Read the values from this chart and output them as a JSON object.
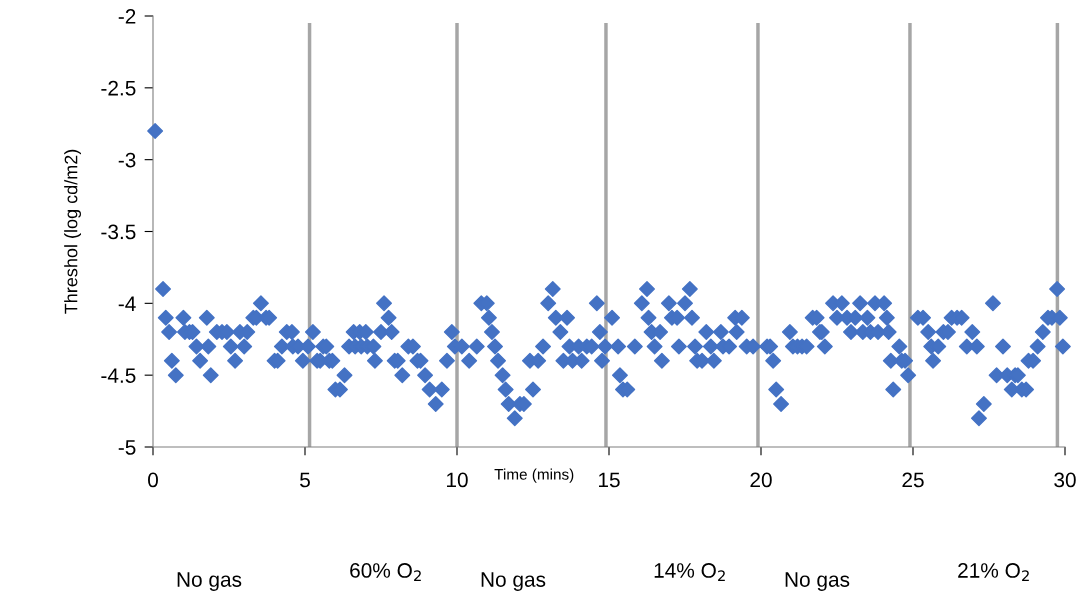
{
  "chart_data": {
    "type": "scatter",
    "xlabel": "Time (mins)",
    "ylabel": "Threshol (log cd/m2)",
    "marker": "diamond",
    "grid": false,
    "xlim": [
      0,
      30
    ],
    "ylim": [
      -5,
      -2
    ],
    "xticks": [
      0,
      5,
      10,
      15,
      20,
      25,
      30
    ],
    "yticks": [
      -5,
      -4.5,
      -4,
      -3.5,
      -3,
      -2.5,
      -2
    ],
    "series": [
      {
        "color": "#4472c4",
        "x": [
          0.07,
          0.33,
          0.42,
          0.53,
          0.62,
          0.75,
          1.0,
          1.05,
          1.2,
          1.3,
          1.43,
          1.55,
          1.77,
          1.82,
          1.9,
          2.1,
          2.27,
          2.43,
          2.56,
          2.7,
          2.86,
          3.0,
          3.1,
          3.3,
          3.4,
          3.55,
          3.72,
          3.82,
          4.0,
          4.1,
          4.24,
          4.4,
          4.57,
          4.6,
          4.77,
          4.93,
          5.1,
          5.26,
          5.4,
          5.5,
          5.6,
          5.7,
          5.8,
          5.9,
          6.0,
          6.15,
          6.3,
          6.45,
          6.6,
          6.65,
          6.8,
          6.85,
          7.0,
          7.05,
          7.25,
          7.3,
          7.5,
          7.6,
          7.75,
          7.85,
          7.95,
          8.05,
          8.2,
          8.4,
          8.55,
          8.7,
          8.8,
          8.95,
          9.1,
          9.3,
          9.5,
          9.67,
          9.83,
          9.93,
          10.16,
          10.4,
          10.65,
          10.8,
          10.98,
          11.05,
          11.15,
          11.25,
          11.35,
          11.5,
          11.6,
          11.7,
          11.9,
          12.07,
          12.2,
          12.4,
          12.5,
          12.67,
          12.83,
          13.0,
          13.15,
          13.25,
          13.4,
          13.5,
          13.62,
          13.7,
          13.8,
          14.0,
          14.1,
          14.27,
          14.43,
          14.6,
          14.7,
          14.77,
          14.87,
          15.1,
          15.3,
          15.36,
          15.46,
          15.6,
          15.85,
          16.08,
          16.25,
          16.3,
          16.4,
          16.5,
          16.68,
          16.74,
          16.97,
          17.07,
          17.24,
          17.3,
          17.5,
          17.66,
          17.73,
          17.83,
          17.9,
          18.06,
          18.2,
          18.35,
          18.45,
          18.68,
          18.75,
          18.95,
          19.15,
          19.2,
          19.37,
          19.53,
          19.74,
          20.2,
          20.3,
          20.4,
          20.5,
          20.66,
          20.95,
          21.05,
          21.2,
          21.35,
          21.5,
          21.7,
          21.83,
          21.94,
          22.0,
          22.1,
          22.37,
          22.5,
          22.66,
          22.83,
          22.96,
          23.1,
          23.26,
          23.35,
          23.5,
          23.6,
          23.75,
          23.85,
          24.05,
          24.14,
          24.2,
          24.27,
          24.35,
          24.55,
          24.63,
          24.74,
          24.84,
          25.16,
          25.33,
          25.5,
          25.6,
          25.66,
          25.83,
          26.0,
          26.15,
          26.27,
          26.45,
          26.6,
          26.77,
          26.95,
          27.1,
          27.17,
          27.33,
          27.63,
          27.75,
          27.96,
          28.1,
          28.25,
          28.36,
          28.45,
          28.58,
          28.72,
          28.8,
          28.95,
          29.1,
          29.27,
          29.44,
          29.57,
          29.74,
          29.83,
          29.93
        ],
        "values": [
          -2.8,
          -3.9,
          -4.1,
          -4.2,
          -4.4,
          -4.5,
          -4.1,
          -4.2,
          -4.2,
          -4.2,
          -4.3,
          -4.4,
          -4.1,
          -4.3,
          -4.5,
          -4.2,
          -4.2,
          -4.2,
          -4.3,
          -4.4,
          -4.2,
          -4.3,
          -4.2,
          -4.1,
          -4.1,
          -4.0,
          -4.1,
          -4.1,
          -4.4,
          -4.4,
          -4.3,
          -4.2,
          -4.2,
          -4.3,
          -4.3,
          -4.4,
          -4.3,
          -4.2,
          -4.4,
          -4.4,
          -4.3,
          -4.3,
          -4.4,
          -4.4,
          -4.6,
          -4.6,
          -4.5,
          -4.3,
          -4.2,
          -4.3,
          -4.2,
          -4.3,
          -4.2,
          -4.3,
          -4.3,
          -4.4,
          -4.2,
          -4.0,
          -4.1,
          -4.2,
          -4.4,
          -4.4,
          -4.5,
          -4.3,
          -4.3,
          -4.4,
          -4.4,
          -4.5,
          -4.6,
          -4.7,
          -4.6,
          -4.4,
          -4.2,
          -4.3,
          -4.3,
          -4.4,
          -4.3,
          -4.0,
          -4.0,
          -4.1,
          -4.2,
          -4.3,
          -4.4,
          -4.5,
          -4.6,
          -4.7,
          -4.8,
          -4.7,
          -4.7,
          -4.4,
          -4.6,
          -4.4,
          -4.3,
          -4.0,
          -3.9,
          -4.1,
          -4.2,
          -4.4,
          -4.1,
          -4.3,
          -4.4,
          -4.3,
          -4.4,
          -4.3,
          -4.3,
          -4.0,
          -4.2,
          -4.4,
          -4.3,
          -4.1,
          -4.3,
          -4.5,
          -4.6,
          -4.6,
          -4.3,
          -4.0,
          -3.9,
          -4.1,
          -4.2,
          -4.3,
          -4.2,
          -4.4,
          -4.0,
          -4.1,
          -4.1,
          -4.3,
          -4.0,
          -3.9,
          -4.1,
          -4.3,
          -4.4,
          -4.4,
          -4.2,
          -4.3,
          -4.4,
          -4.2,
          -4.3,
          -4.3,
          -4.1,
          -4.2,
          -4.1,
          -4.3,
          -4.3,
          -4.3,
          -4.3,
          -4.4,
          -4.6,
          -4.7,
          -4.2,
          -4.3,
          -4.3,
          -4.3,
          -4.3,
          -4.1,
          -4.1,
          -4.2,
          -4.2,
          -4.3,
          -4.0,
          -4.1,
          -4.0,
          -4.1,
          -4.2,
          -4.1,
          -4.0,
          -4.2,
          -4.1,
          -4.2,
          -4.0,
          -4.2,
          -4.0,
          -4.1,
          -4.2,
          -4.4,
          -4.6,
          -4.3,
          -4.4,
          -4.4,
          -4.5,
          -4.1,
          -4.1,
          -4.2,
          -4.3,
          -4.4,
          -4.3,
          -4.2,
          -4.2,
          -4.1,
          -4.1,
          -4.1,
          -4.3,
          -4.2,
          -4.3,
          -4.8,
          -4.7,
          -4.0,
          -4.5,
          -4.3,
          -4.5,
          -4.6,
          -4.5,
          -4.5,
          -4.6,
          -4.6,
          -4.4,
          -4.4,
          -4.3,
          -4.2,
          -4.1,
          -4.1,
          -3.9,
          -4.1,
          -4.3
        ]
      }
    ],
    "ref_lines": [
      {
        "axis": "x",
        "value": 5.15,
        "color": "#a6a6a6"
      },
      {
        "axis": "x",
        "value": 10.0,
        "color": "#a6a6a6"
      },
      {
        "axis": "x",
        "value": 14.9,
        "color": "#a6a6a6"
      },
      {
        "axis": "x",
        "value": 19.9,
        "color": "#a6a6a6"
      },
      {
        "axis": "x",
        "value": 24.9,
        "color": "#a6a6a6"
      },
      {
        "axis": "x",
        "value": 29.75,
        "color": "#a6a6a6"
      }
    ],
    "annotations": [
      "No gas",
      "60% O$_{2}$",
      "No gas",
      "14% O$_{2}$",
      "No gas",
      "21% O$_{2}$"
    ]
  }
}
